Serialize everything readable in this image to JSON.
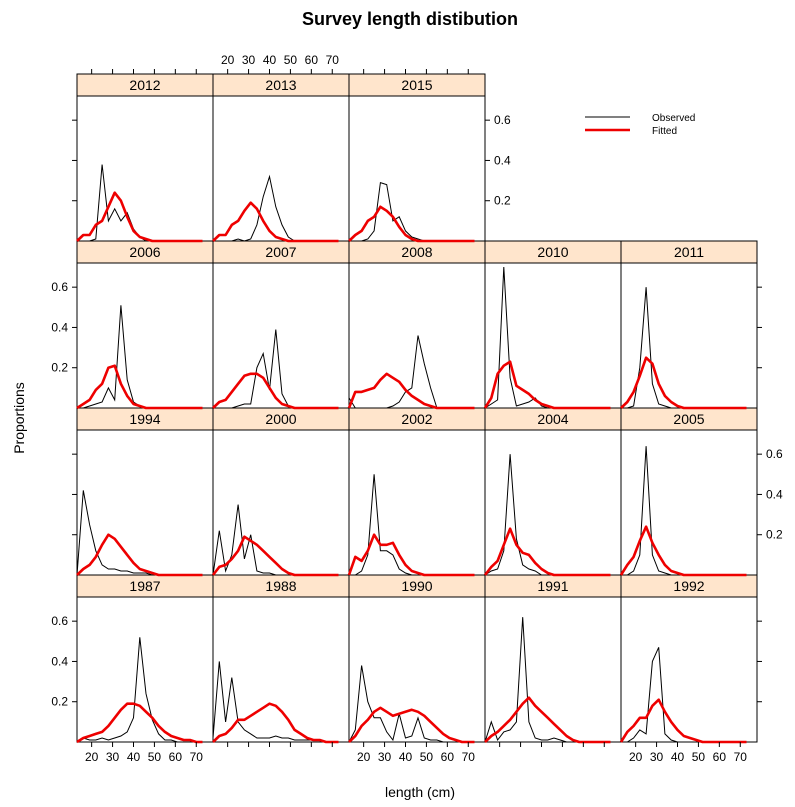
{
  "chart_data": {
    "type": "line",
    "title": "Survey length distibution",
    "xlabel": "length (cm)",
    "ylabel": "Proportions",
    "xlim": [
      13,
      78
    ],
    "ylim": [
      0,
      0.72
    ],
    "x_ticks": [
      20,
      30,
      40,
      50,
      60,
      70
    ],
    "y_ticks": [
      0.2,
      0.4,
      0.6
    ],
    "x": [
      13,
      16,
      19,
      22,
      25,
      28,
      31,
      34,
      37,
      40,
      43,
      46,
      49,
      52,
      55,
      58,
      61,
      64,
      67,
      70,
      73
    ],
    "legend": [
      {
        "name": "Observed",
        "color": "#000000"
      },
      {
        "name": "Fitted",
        "color": "#ee0000"
      }
    ],
    "panels": [
      {
        "label": "1987",
        "observed": [
          0,
          0.02,
          0.01,
          0.01,
          0.02,
          0.01,
          0.02,
          0.03,
          0.05,
          0.12,
          0.52,
          0.24,
          0.11,
          0.04,
          0.01,
          0.01,
          0,
          0,
          0,
          0,
          0
        ],
        "fitted": [
          0,
          0.02,
          0.03,
          0.04,
          0.05,
          0.08,
          0.12,
          0.16,
          0.19,
          0.19,
          0.18,
          0.15,
          0.12,
          0.08,
          0.05,
          0.03,
          0.02,
          0.01,
          0.01,
          0,
          0
        ]
      },
      {
        "label": "1988",
        "observed": [
          0.02,
          0.4,
          0.1,
          0.32,
          0.1,
          0.06,
          0.04,
          0.02,
          0.02,
          0.02,
          0.03,
          0.02,
          0.02,
          0.01,
          0.01,
          0.01,
          0.01,
          0.01,
          0,
          0,
          0
        ],
        "fitted": [
          0,
          0.03,
          0.04,
          0.07,
          0.11,
          0.11,
          0.13,
          0.15,
          0.17,
          0.19,
          0.18,
          0.15,
          0.11,
          0.06,
          0.04,
          0.02,
          0.01,
          0.01,
          0,
          0,
          0
        ]
      },
      {
        "label": "1990",
        "observed": [
          0,
          0.06,
          0.38,
          0.2,
          0.12,
          0.12,
          0.05,
          0.01,
          0.14,
          0.02,
          0.03,
          0.12,
          0.02,
          0.01,
          0.01,
          0,
          0,
          0,
          0,
          0,
          0
        ],
        "fitted": [
          0,
          0.03,
          0.08,
          0.11,
          0.15,
          0.17,
          0.15,
          0.13,
          0.14,
          0.15,
          0.16,
          0.15,
          0.13,
          0.1,
          0.07,
          0.04,
          0.02,
          0.01,
          0,
          0,
          0
        ]
      },
      {
        "label": "1991",
        "observed": [
          0,
          0.1,
          0.01,
          0.05,
          0.06,
          0.1,
          0.62,
          0.1,
          0.02,
          0.01,
          0.01,
          0.02,
          0.01,
          0,
          0,
          0,
          0,
          0,
          0,
          0,
          0
        ],
        "fitted": [
          0,
          0.03,
          0.05,
          0.08,
          0.11,
          0.15,
          0.19,
          0.22,
          0.18,
          0.15,
          0.12,
          0.09,
          0.06,
          0.03,
          0.01,
          0,
          0,
          0,
          0,
          0,
          0
        ]
      },
      {
        "label": "1992",
        "observed": [
          0,
          0,
          0.02,
          0.06,
          0.04,
          0.4,
          0.47,
          0.04,
          0.01,
          0,
          0,
          0,
          0,
          0,
          0,
          0,
          0,
          0,
          0,
          0,
          0
        ],
        "fitted": [
          0,
          0.05,
          0.08,
          0.12,
          0.12,
          0.18,
          0.21,
          0.15,
          0.1,
          0.06,
          0.03,
          0.02,
          0.01,
          0,
          0,
          0,
          0,
          0,
          0,
          0,
          0
        ]
      },
      {
        "label": "1994",
        "observed": [
          0,
          0.42,
          0.25,
          0.12,
          0.05,
          0.03,
          0.03,
          0.02,
          0.02,
          0.01,
          0.01,
          0.01,
          0,
          0,
          0,
          0,
          0,
          0,
          0,
          0,
          0
        ],
        "fitted": [
          0,
          0.03,
          0.05,
          0.09,
          0.15,
          0.2,
          0.18,
          0.14,
          0.1,
          0.06,
          0.03,
          0.02,
          0.01,
          0,
          0,
          0,
          0,
          0,
          0,
          0,
          0
        ]
      },
      {
        "label": "2000",
        "observed": [
          0,
          0.22,
          0.02,
          0.1,
          0.35,
          0.08,
          0.2,
          0.02,
          0.01,
          0.01,
          0,
          0,
          0,
          0,
          0,
          0,
          0,
          0,
          0,
          0,
          0
        ],
        "fitted": [
          0,
          0.04,
          0.05,
          0.08,
          0.12,
          0.19,
          0.17,
          0.15,
          0.12,
          0.09,
          0.06,
          0.03,
          0.01,
          0,
          0,
          0,
          0,
          0,
          0,
          0,
          0
        ]
      },
      {
        "label": "2002",
        "observed": [
          0,
          0,
          0.02,
          0.1,
          0.5,
          0.12,
          0.12,
          0.1,
          0.03,
          0.01,
          0,
          0,
          0,
          0,
          0,
          0,
          0,
          0,
          0,
          0,
          0
        ],
        "fitted": [
          0,
          0.09,
          0.07,
          0.12,
          0.2,
          0.15,
          0.15,
          0.16,
          0.1,
          0.05,
          0.02,
          0.01,
          0,
          0,
          0,
          0,
          0,
          0,
          0,
          0,
          0
        ]
      },
      {
        "label": "2004",
        "observed": [
          0,
          0.02,
          0.03,
          0.12,
          0.6,
          0.18,
          0.05,
          0.03,
          0.02,
          0,
          0,
          0,
          0,
          0,
          0,
          0,
          0,
          0,
          0,
          0,
          0
        ],
        "fitted": [
          0,
          0.04,
          0.07,
          0.15,
          0.23,
          0.15,
          0.11,
          0.1,
          0.06,
          0.03,
          0.01,
          0,
          0,
          0,
          0,
          0,
          0,
          0,
          0,
          0,
          0
        ]
      },
      {
        "label": "2005",
        "observed": [
          0,
          0,
          0.02,
          0.1,
          0.64,
          0.1,
          0.02,
          0.01,
          0,
          0,
          0,
          0,
          0,
          0,
          0,
          0,
          0,
          0,
          0,
          0,
          0
        ],
        "fitted": [
          0,
          0.05,
          0.09,
          0.17,
          0.24,
          0.16,
          0.1,
          0.05,
          0.02,
          0.01,
          0,
          0,
          0,
          0,
          0,
          0,
          0,
          0,
          0,
          0,
          0
        ]
      },
      {
        "label": "2006",
        "observed": [
          0,
          0,
          0.01,
          0.02,
          0.03,
          0.1,
          0.04,
          0.51,
          0.14,
          0.03,
          0.01,
          0,
          0,
          0,
          0,
          0,
          0,
          0,
          0,
          0,
          0
        ],
        "fitted": [
          0,
          0.02,
          0.04,
          0.09,
          0.12,
          0.2,
          0.21,
          0.12,
          0.06,
          0.02,
          0.01,
          0,
          0,
          0,
          0,
          0,
          0,
          0,
          0,
          0,
          0
        ]
      },
      {
        "label": "2007",
        "observed": [
          0,
          0,
          0,
          0,
          0.01,
          0.02,
          0.02,
          0.2,
          0.27,
          0.09,
          0.39,
          0.07,
          0.01,
          0,
          0,
          0,
          0,
          0,
          0,
          0,
          0
        ],
        "fitted": [
          0,
          0.03,
          0.04,
          0.08,
          0.12,
          0.16,
          0.17,
          0.17,
          0.15,
          0.1,
          0.05,
          0.02,
          0.01,
          0,
          0,
          0,
          0,
          0,
          0,
          0,
          0
        ]
      },
      {
        "label": "2008",
        "observed": [
          0.05,
          0,
          0,
          0,
          0,
          0,
          0,
          0.01,
          0.03,
          0.08,
          0.1,
          0.36,
          0.22,
          0.1,
          0,
          0,
          0,
          0,
          0,
          0,
          0
        ],
        "fitted": [
          0,
          0.08,
          0.08,
          0.09,
          0.1,
          0.14,
          0.17,
          0.15,
          0.13,
          0.09,
          0.06,
          0.04,
          0.02,
          0.01,
          0,
          0,
          0,
          0,
          0,
          0,
          0
        ]
      },
      {
        "label": "2010",
        "observed": [
          0,
          0.02,
          0.04,
          0.7,
          0.15,
          0.01,
          0.02,
          0.03,
          0.05,
          0.01,
          0,
          0,
          0,
          0,
          0,
          0,
          0,
          0,
          0,
          0,
          0
        ],
        "fitted": [
          0,
          0.05,
          0.17,
          0.21,
          0.23,
          0.11,
          0.09,
          0.07,
          0.04,
          0.02,
          0.01,
          0,
          0,
          0,
          0,
          0,
          0,
          0,
          0,
          0,
          0
        ]
      },
      {
        "label": "2011",
        "observed": [
          0,
          0,
          0.01,
          0.2,
          0.6,
          0.12,
          0.02,
          0.01,
          0,
          0,
          0,
          0,
          0,
          0,
          0,
          0,
          0,
          0,
          0,
          0,
          0
        ],
        "fitted": [
          0,
          0.03,
          0.08,
          0.16,
          0.25,
          0.22,
          0.12,
          0.06,
          0.03,
          0.01,
          0,
          0,
          0,
          0,
          0,
          0,
          0,
          0,
          0,
          0,
          0
        ]
      },
      {
        "label": "2012",
        "observed": [
          0,
          0,
          0,
          0.01,
          0.38,
          0.1,
          0.16,
          0.1,
          0.14,
          0.06,
          0.02,
          0,
          0,
          0,
          0,
          0,
          0,
          0,
          0,
          0,
          0
        ],
        "fitted": [
          0,
          0.03,
          0.03,
          0.08,
          0.1,
          0.17,
          0.24,
          0.2,
          0.12,
          0.05,
          0.02,
          0.01,
          0,
          0,
          0,
          0,
          0,
          0,
          0,
          0,
          0
        ]
      },
      {
        "label": "2013",
        "observed": [
          0,
          0,
          0,
          0,
          0.01,
          0,
          0.01,
          0.08,
          0.22,
          0.32,
          0.17,
          0.08,
          0.02,
          0,
          0,
          0,
          0,
          0,
          0,
          0,
          0
        ],
        "fitted": [
          0,
          0.03,
          0.03,
          0.08,
          0.1,
          0.15,
          0.19,
          0.16,
          0.1,
          0.05,
          0.02,
          0.01,
          0,
          0,
          0,
          0,
          0,
          0,
          0,
          0,
          0
        ]
      },
      {
        "label": "2015",
        "observed": [
          0,
          0,
          0,
          0.01,
          0.05,
          0.29,
          0.28,
          0.1,
          0.12,
          0.05,
          0.02,
          0.01,
          0,
          0,
          0,
          0,
          0,
          0,
          0,
          0,
          0
        ],
        "fitted": [
          0,
          0.03,
          0.05,
          0.1,
          0.12,
          0.17,
          0.15,
          0.12,
          0.07,
          0.03,
          0.01,
          0,
          0,
          0,
          0,
          0,
          0,
          0,
          0,
          0,
          0
        ]
      }
    ]
  }
}
